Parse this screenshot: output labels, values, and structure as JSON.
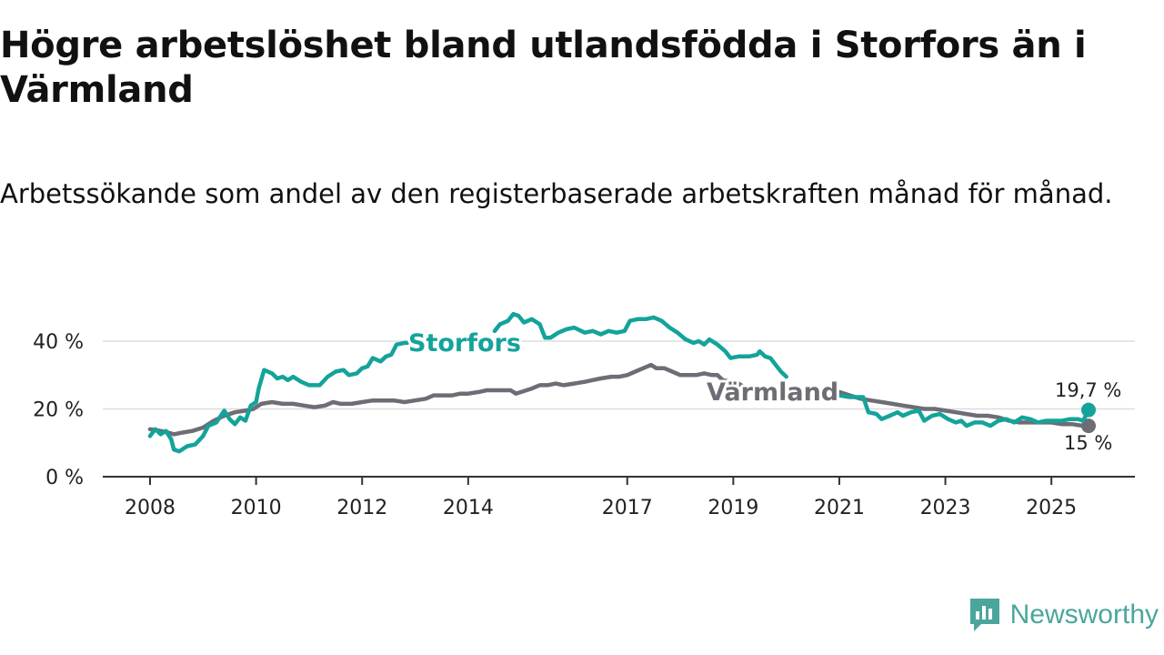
{
  "header": {
    "title": "Högre arbetslöshet bland utlandsfödda i Storfors än i Värmland",
    "subtitle": "Arbetssökande som andel av den registerbaserade arbetskraften månad för månad."
  },
  "branding": {
    "name": "Newsworthy",
    "logo_icon": "bar-chart-speech-bubble-icon"
  },
  "colors": {
    "storfors": "#14a39a",
    "varmland": "#6e6c74",
    "grid": "#dddddd",
    "axis": "#333333",
    "text": "#222222"
  },
  "chart_data": {
    "type": "line",
    "title": "Högre arbetslöshet bland utlandsfödda i Storfors än i Värmland",
    "subtitle": "Arbetssökande som andel av den registerbaserade arbetskraften månad för månad.",
    "xlabel": "",
    "ylabel": "",
    "xlim": [
      2008,
      2026.1
    ],
    "ylim": [
      0,
      45
    ],
    "grid": true,
    "y_ticks": [
      0,
      20,
      40
    ],
    "y_tick_labels": [
      "0 %",
      "20 %",
      "40 %"
    ],
    "x_ticks": [
      2008,
      2010,
      2012,
      2014,
      2017,
      2019,
      2021,
      2023,
      2025
    ],
    "x_tick_labels": [
      "2008",
      "2010",
      "2012",
      "2014",
      "2017",
      "2019",
      "2021",
      "2023",
      "2025"
    ],
    "series": [
      {
        "name": "Storfors",
        "color": "#14a39a",
        "label": "Storfors",
        "end_label": "19,7 %",
        "segments": [
          [
            [
              2008.0,
              12
            ],
            [
              2008.1,
              14
            ],
            [
              2008.2,
              12.5
            ],
            [
              2008.3,
              13.5
            ],
            [
              2008.4,
              11
            ],
            [
              2008.45,
              8
            ],
            [
              2008.55,
              7.5
            ],
            [
              2008.7,
              9
            ],
            [
              2008.85,
              9.5
            ],
            [
              2009.0,
              12
            ],
            [
              2009.1,
              15
            ],
            [
              2009.25,
              16
            ],
            [
              2009.4,
              19.5
            ],
            [
              2009.5,
              17
            ],
            [
              2009.6,
              15.5
            ],
            [
              2009.7,
              17.5
            ],
            [
              2009.8,
              16.5
            ],
            [
              2009.9,
              21
            ],
            [
              2010.0,
              22
            ],
            [
              2010.05,
              26
            ],
            [
              2010.15,
              31.5
            ],
            [
              2010.3,
              30.5
            ],
            [
              2010.4,
              29
            ],
            [
              2010.5,
              29.5
            ],
            [
              2010.6,
              28.5
            ],
            [
              2010.7,
              29.5
            ],
            [
              2010.85,
              28
            ],
            [
              2011.0,
              27
            ],
            [
              2011.2,
              27
            ],
            [
              2011.35,
              29.5
            ],
            [
              2011.5,
              31
            ],
            [
              2011.65,
              31.5
            ],
            [
              2011.75,
              30
            ],
            [
              2011.9,
              30.5
            ],
            [
              2012.0,
              32
            ],
            [
              2012.1,
              32.5
            ],
            [
              2012.2,
              35
            ],
            [
              2012.35,
              34
            ],
            [
              2012.45,
              35.5
            ],
            [
              2012.55,
              36
            ],
            [
              2012.65,
              39
            ],
            [
              2012.8,
              39.5
            ],
            [
              2013.0,
              39.5
            ],
            [
              2013.2,
              39
            ],
            [
              2013.3,
              39
            ],
            [
              2013.4,
              40.5
            ]
          ],
          [
            [
              2014.5,
              43
            ],
            [
              2014.6,
              45
            ],
            [
              2014.75,
              46
            ],
            [
              2014.85,
              48
            ],
            [
              2014.95,
              47.5
            ],
            [
              2015.05,
              45.5
            ],
            [
              2015.2,
              46.5
            ],
            [
              2015.35,
              45
            ],
            [
              2015.45,
              41
            ],
            [
              2015.55,
              41
            ],
            [
              2015.7,
              42.5
            ],
            [
              2015.85,
              43.5
            ],
            [
              2016.0,
              44
            ],
            [
              2016.2,
              42.5
            ],
            [
              2016.35,
              43
            ],
            [
              2016.5,
              42
            ],
            [
              2016.65,
              43
            ],
            [
              2016.8,
              42.5
            ],
            [
              2016.95,
              43
            ],
            [
              2017.05,
              46
            ],
            [
              2017.2,
              46.5
            ],
            [
              2017.35,
              46.5
            ],
            [
              2017.5,
              47
            ],
            [
              2017.65,
              46
            ],
            [
              2017.8,
              44
            ],
            [
              2017.95,
              42.5
            ],
            [
              2018.1,
              40.5
            ],
            [
              2018.25,
              39.5
            ],
            [
              2018.35,
              40
            ],
            [
              2018.45,
              39
            ],
            [
              2018.55,
              40.5
            ],
            [
              2018.7,
              39
            ],
            [
              2018.85,
              37
            ],
            [
              2018.95,
              35
            ],
            [
              2019.1,
              35.5
            ],
            [
              2019.3,
              35.5
            ],
            [
              2019.45,
              36
            ],
            [
              2019.5,
              37
            ],
            [
              2019.6,
              35.5
            ],
            [
              2019.7,
              35
            ],
            [
              2019.8,
              33
            ],
            [
              2019.9,
              31
            ],
            [
              2020.0,
              29.5
            ]
          ],
          [
            [
              2021.0,
              24
            ],
            [
              2021.2,
              23.5
            ],
            [
              2021.35,
              23.5
            ],
            [
              2021.45,
              23.5
            ],
            [
              2021.55,
              19
            ],
            [
              2021.7,
              18.5
            ],
            [
              2021.8,
              17
            ],
            [
              2021.95,
              18
            ],
            [
              2022.1,
              19
            ],
            [
              2022.2,
              18
            ],
            [
              2022.35,
              19
            ],
            [
              2022.5,
              19.5
            ],
            [
              2022.6,
              16.5
            ],
            [
              2022.75,
              18
            ],
            [
              2022.9,
              18.5
            ],
            [
              2023.05,
              17
            ],
            [
              2023.2,
              16
            ],
            [
              2023.3,
              16.5
            ],
            [
              2023.4,
              15
            ],
            [
              2023.55,
              16
            ],
            [
              2023.7,
              16
            ],
            [
              2023.85,
              15
            ],
            [
              2024.0,
              16.5
            ],
            [
              2024.15,
              17
            ],
            [
              2024.3,
              16
            ],
            [
              2024.45,
              17.5
            ],
            [
              2024.6,
              17
            ],
            [
              2024.75,
              16
            ],
            [
              2024.9,
              16.5
            ],
            [
              2025.05,
              16.5
            ],
            [
              2025.2,
              16.5
            ],
            [
              2025.35,
              17
            ],
            [
              2025.5,
              17
            ],
            [
              2025.6,
              16.5
            ],
            [
              2025.7,
              19.7
            ]
          ]
        ]
      },
      {
        "name": "Värmland",
        "color": "#6e6c74",
        "label": "Värmland",
        "end_label": "15 %",
        "segments": [
          [
            [
              2008.0,
              14
            ],
            [
              2008.2,
              13.5
            ],
            [
              2008.35,
              13
            ],
            [
              2008.45,
              12.5
            ],
            [
              2008.6,
              13
            ],
            [
              2008.8,
              13.5
            ],
            [
              2009.0,
              14.5
            ],
            [
              2009.2,
              16.5
            ],
            [
              2009.4,
              18
            ],
            [
              2009.6,
              19
            ],
            [
              2009.8,
              19.5
            ],
            [
              2009.95,
              20
            ],
            [
              2010.1,
              21.5
            ],
            [
              2010.3,
              22
            ],
            [
              2010.5,
              21.5
            ],
            [
              2010.7,
              21.5
            ],
            [
              2010.9,
              21
            ],
            [
              2011.1,
              20.5
            ],
            [
              2011.3,
              21
            ],
            [
              2011.45,
              22
            ],
            [
              2011.6,
              21.5
            ],
            [
              2011.8,
              21.5
            ],
            [
              2012.0,
              22
            ],
            [
              2012.2,
              22.5
            ],
            [
              2012.4,
              22.5
            ],
            [
              2012.6,
              22.5
            ],
            [
              2012.8,
              22
            ],
            [
              2013.0,
              22.5
            ],
            [
              2013.2,
              23
            ],
            [
              2013.35,
              24
            ],
            [
              2013.5,
              24
            ],
            [
              2013.7,
              24
            ],
            [
              2013.85,
              24.5
            ],
            [
              2014.0,
              24.5
            ],
            [
              2014.2,
              25
            ],
            [
              2014.35,
              25.5
            ],
            [
              2014.5,
              25.5
            ],
            [
              2014.65,
              25.5
            ],
            [
              2014.8,
              25.5
            ],
            [
              2014.9,
              24.5
            ],
            [
              2015.0,
              25
            ],
            [
              2015.2,
              26
            ],
            [
              2015.35,
              27
            ],
            [
              2015.5,
              27
            ],
            [
              2015.65,
              27.5
            ],
            [
              2015.8,
              27
            ],
            [
              2016.0,
              27.5
            ],
            [
              2016.2,
              28
            ],
            [
              2016.35,
              28.5
            ],
            [
              2016.5,
              29
            ],
            [
              2016.7,
              29.5
            ],
            [
              2016.85,
              29.5
            ],
            [
              2017.0,
              30
            ],
            [
              2017.15,
              31
            ],
            [
              2017.3,
              32
            ],
            [
              2017.45,
              33
            ],
            [
              2017.55,
              32
            ],
            [
              2017.7,
              32
            ],
            [
              2017.85,
              31
            ],
            [
              2018.0,
              30
            ],
            [
              2018.15,
              30
            ],
            [
              2018.3,
              30
            ],
            [
              2018.45,
              30.5
            ],
            [
              2018.6,
              30
            ],
            [
              2018.7,
              30
            ],
            [
              2018.8,
              28.5
            ],
            [
              2018.95,
              28
            ],
            [
              2019.1,
              27.5
            ],
            [
              2019.2,
              26.5
            ],
            [
              2019.35,
              25.5
            ]
          ],
          [
            [
              2021.0,
              25
            ],
            [
              2021.2,
              24
            ],
            [
              2021.4,
              23
            ],
            [
              2021.6,
              22.5
            ],
            [
              2021.8,
              22
            ],
            [
              2022.0,
              21.5
            ],
            [
              2022.2,
              21
            ],
            [
              2022.4,
              20.5
            ],
            [
              2022.6,
              20
            ],
            [
              2022.8,
              20
            ],
            [
              2023.0,
              19.5
            ],
            [
              2023.2,
              19
            ],
            [
              2023.4,
              18.5
            ],
            [
              2023.6,
              18
            ],
            [
              2023.8,
              18
            ],
            [
              2024.0,
              17.5
            ],
            [
              2024.2,
              16.5
            ],
            [
              2024.4,
              16
            ],
            [
              2024.6,
              16
            ],
            [
              2024.8,
              16
            ],
            [
              2025.0,
              16
            ],
            [
              2025.2,
              15.5
            ],
            [
              2025.4,
              15.5
            ],
            [
              2025.6,
              15
            ],
            [
              2025.7,
              15
            ]
          ]
        ]
      }
    ]
  }
}
